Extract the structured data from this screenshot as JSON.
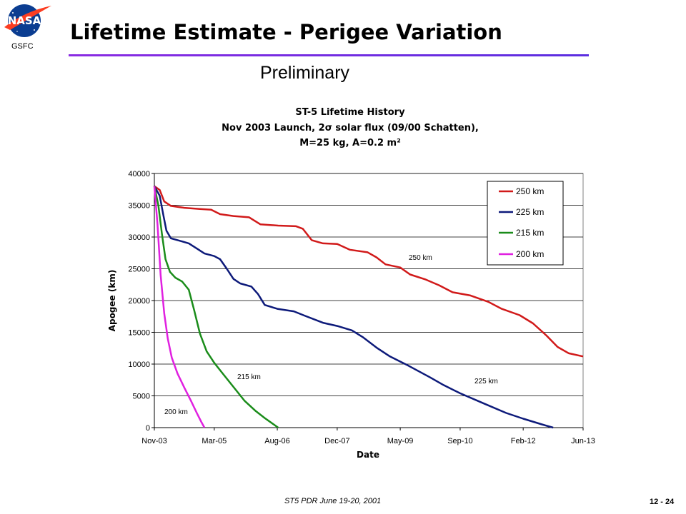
{
  "header": {
    "logo_text": "NASA",
    "org": "GSFC",
    "title": "Lifetime Estimate - Perigee Variation",
    "subtitle": "Preliminary"
  },
  "footer": {
    "left": "ST5 PDR June 19-20, 2001",
    "page": "12 - 24"
  },
  "colors": {
    "title_rule": "#6a2be0",
    "s250": "#d11a1a",
    "s225": "#0d1a7a",
    "s215": "#1a8c1a",
    "s200": "#e020e0"
  },
  "chart_data": {
    "type": "line",
    "title_lines": [
      "ST-5 Lifetime History",
      "Nov 2003 Launch, 2σ solar flux (09/00 Schatten),",
      "M=25 kg, A=0.2 m²"
    ],
    "xlabel": "Date",
    "ylabel": "Apogee (km)",
    "x_ticks": [
      "Nov-03",
      "Mar-05",
      "Aug-06",
      "Dec-07",
      "May-09",
      "Sep-10",
      "Feb-12",
      "Jun-13"
    ],
    "x_tick_years": [
      2003.83,
      2005.17,
      2006.58,
      2007.92,
      2009.33,
      2010.67,
      2012.08,
      2013.42
    ],
    "ylim": [
      0,
      40000
    ],
    "y_ticks": [
      0,
      5000,
      10000,
      15000,
      20000,
      25000,
      30000,
      35000,
      40000
    ],
    "grid": "horizontal",
    "legend_position": "top-right",
    "series": [
      {
        "name": "250 km",
        "color_key": "s250",
        "label": "250 km",
        "points": [
          [
            2003.83,
            38000
          ],
          [
            2003.95,
            37400
          ],
          [
            2004.05,
            35600
          ],
          [
            2004.2,
            34900
          ],
          [
            2004.5,
            34600
          ],
          [
            2004.85,
            34400
          ],
          [
            2005.1,
            34300
          ],
          [
            2005.3,
            33600
          ],
          [
            2005.6,
            33300
          ],
          [
            2005.95,
            33100
          ],
          [
            2006.2,
            32000
          ],
          [
            2006.6,
            31800
          ],
          [
            2007.0,
            31700
          ],
          [
            2007.15,
            31300
          ],
          [
            2007.35,
            29500
          ],
          [
            2007.6,
            29000
          ],
          [
            2007.92,
            28900
          ],
          [
            2008.2,
            28000
          ],
          [
            2008.6,
            27600
          ],
          [
            2008.8,
            26800
          ],
          [
            2009.0,
            25700
          ],
          [
            2009.33,
            25200
          ],
          [
            2009.55,
            24100
          ],
          [
            2009.9,
            23300
          ],
          [
            2010.2,
            22400
          ],
          [
            2010.5,
            21300
          ],
          [
            2010.9,
            20800
          ],
          [
            2011.3,
            19800
          ],
          [
            2011.6,
            18700
          ],
          [
            2012.0,
            17700
          ],
          [
            2012.3,
            16400
          ],
          [
            2012.6,
            14500
          ],
          [
            2012.85,
            12700
          ],
          [
            2013.1,
            11700
          ],
          [
            2013.42,
            11200
          ]
        ]
      },
      {
        "name": "225 km",
        "color_key": "s225",
        "label": "225 km",
        "points": [
          [
            2003.83,
            38000
          ],
          [
            2003.95,
            36500
          ],
          [
            2004.03,
            33500
          ],
          [
            2004.1,
            31000
          ],
          [
            2004.2,
            29800
          ],
          [
            2004.4,
            29400
          ],
          [
            2004.6,
            29000
          ],
          [
            2004.8,
            28100
          ],
          [
            2004.95,
            27400
          ],
          [
            2005.17,
            27000
          ],
          [
            2005.3,
            26500
          ],
          [
            2005.45,
            25000
          ],
          [
            2005.6,
            23400
          ],
          [
            2005.75,
            22700
          ],
          [
            2006.0,
            22200
          ],
          [
            2006.15,
            21000
          ],
          [
            2006.3,
            19300
          ],
          [
            2006.58,
            18700
          ],
          [
            2006.95,
            18300
          ],
          [
            2007.2,
            17600
          ],
          [
            2007.6,
            16500
          ],
          [
            2007.92,
            16000
          ],
          [
            2008.25,
            15300
          ],
          [
            2008.5,
            14200
          ],
          [
            2008.8,
            12600
          ],
          [
            2009.1,
            11200
          ],
          [
            2009.5,
            9800
          ],
          [
            2010.0,
            7900
          ],
          [
            2010.3,
            6700
          ],
          [
            2010.67,
            5400
          ],
          [
            2011.2,
            3800
          ],
          [
            2011.7,
            2300
          ],
          [
            2012.08,
            1400
          ],
          [
            2012.5,
            500
          ],
          [
            2012.75,
            0
          ]
        ]
      },
      {
        "name": "215 km",
        "color_key": "s215",
        "label": "215 km",
        "points": [
          [
            2003.83,
            38000
          ],
          [
            2003.92,
            35000
          ],
          [
            2004.0,
            30500
          ],
          [
            2004.08,
            26500
          ],
          [
            2004.18,
            24500
          ],
          [
            2004.3,
            23600
          ],
          [
            2004.45,
            23000
          ],
          [
            2004.6,
            21700
          ],
          [
            2004.72,
            18500
          ],
          [
            2004.85,
            14800
          ],
          [
            2005.0,
            12000
          ],
          [
            2005.17,
            10200
          ],
          [
            2005.35,
            8600
          ],
          [
            2005.6,
            6400
          ],
          [
            2005.85,
            4200
          ],
          [
            2006.1,
            2600
          ],
          [
            2006.3,
            1500
          ],
          [
            2006.5,
            500
          ],
          [
            2006.6,
            0
          ]
        ]
      },
      {
        "name": "200 km",
        "color_key": "s200",
        "label": "200 km",
        "points": [
          [
            2003.83,
            38000
          ],
          [
            2003.9,
            32000
          ],
          [
            2003.97,
            24000
          ],
          [
            2004.05,
            18000
          ],
          [
            2004.13,
            14000
          ],
          [
            2004.22,
            11000
          ],
          [
            2004.35,
            8500
          ],
          [
            2004.5,
            6300
          ],
          [
            2004.65,
            4200
          ],
          [
            2004.78,
            2300
          ],
          [
            2004.88,
            900
          ],
          [
            2004.95,
            0
          ]
        ]
      }
    ]
  }
}
